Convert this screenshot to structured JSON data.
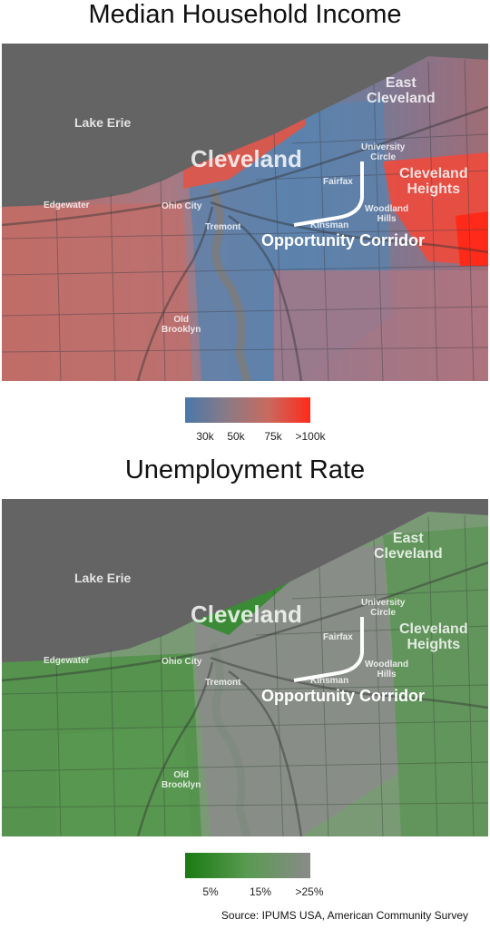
{
  "income_map": {
    "title": "Median Household Income",
    "labels": {
      "lake_erie": "Lake Erie",
      "east_cleveland": "East\nCleveland",
      "university_circle": "University\nCircle",
      "cleveland": "Cleveland",
      "cleveland_heights": "Cleveland\nHeights",
      "fairfax": "Fairfax",
      "edgewater": "Edgewater",
      "ohio_city": "Ohio City",
      "woodland_hills": "Woodland\nHills",
      "kinsman": "Kinsman",
      "tremont": "Tremont",
      "opportunity_corridor": "Opportunity Corridor",
      "old_brooklyn": "Old\nBrooklyn"
    },
    "legend": {
      "ticks": [
        "30k",
        "50k",
        "75k",
        ">100k"
      ],
      "colors": [
        "#4a78a8",
        "#8a7a86",
        "#c86a5e",
        "#ff2a1a"
      ]
    }
  },
  "unemployment_map": {
    "title": "Unemployment Rate",
    "labels": {
      "lake_erie": "Lake Erie",
      "east_cleveland": "East\nCleveland",
      "university_circle": "University\nCircle",
      "cleveland": "Cleveland",
      "cleveland_heights": "Cleveland\nHeights",
      "fairfax": "Fairfax",
      "edgewater": "Edgewater",
      "ohio_city": "Ohio City",
      "woodland_hills": "Woodland\nHills",
      "kinsman": "Kinsman",
      "tremont": "Tremont",
      "opportunity_corridor": "Opportunity Corridor",
      "old_brooklyn": "Old\nBrooklyn"
    },
    "legend": {
      "ticks": [
        "5%",
        "15%",
        ">25%"
      ],
      "colors": [
        "#1a7a12",
        "#5a9a52",
        "#8a8a8a"
      ]
    }
  },
  "source": "Source: IPUMS USA, American Community Survey",
  "colors": {
    "lake": "#646464",
    "income_low": "#4f7fae",
    "income_mid": "#8c7d8c",
    "income_high": "#e8463a",
    "unemp_low": "#2e8a2a",
    "unemp_mid": "#5c9a58",
    "unemp_high": "#8c8c8c"
  }
}
